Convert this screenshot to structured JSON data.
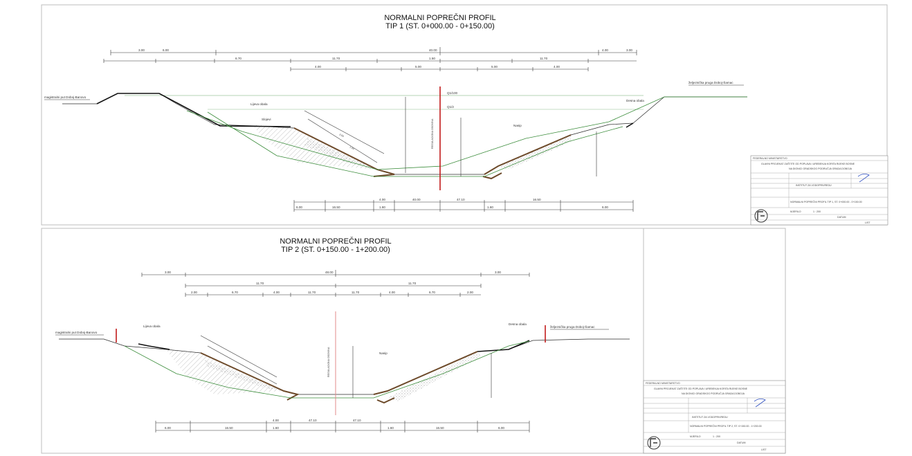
{
  "sheet1": {
    "title_line1": "NORMALNI POPREČNI PROFIL",
    "title_line2": "TIP 1 (ST. 0+000.00 - 0+150.00)",
    "left_label": "magistralni put Doboj-Banovo",
    "right_label": "željeznička pruga Doboj-Šamac",
    "left_bank": "Lijeva obala",
    "right_bank": "Desna obala",
    "axis_label": "REGULACIONA OSOVINA",
    "embankment_label": "Nasip",
    "layers_label": "Slojevi",
    "water_level_high": "Q1/100",
    "water_level_low": "Q1/2",
    "dims_top": [
      "3.00",
      "6.00",
      "40.00",
      "4.00",
      "3.00"
    ],
    "dims_mid": [
      "2.00",
      "4.00",
      "1.50",
      "6.70",
      "3.00",
      "11.70",
      "4.00",
      "5.00",
      "1.50"
    ],
    "dims_bottom": [
      "6.00",
      "16.50",
      "4.00",
      "1.60",
      "40.00",
      "47.10",
      "1.60",
      "4.00",
      "16.50",
      "6.00"
    ]
  },
  "sheet2": {
    "title_line1": "NORMALNI POPREČNI PROFIL",
    "title_line2": "TIP 2 (ST. 0+150.00 - 1+200.00)",
    "left_label": "magistralni put Doboj-Banovo",
    "right_label": "željeznička pruga Doboj-Šamac",
    "left_bank": "Lijeva obala",
    "right_bank": "Desna obala",
    "axis_label": "REGULACIONA OSOVINA",
    "embankment_label": "Nasip",
    "dims_top": [
      "3.00",
      "48.00",
      "3.00"
    ],
    "dims_mid": [
      "2.00",
      "6.70",
      "4.00",
      "11.70",
      "11.70",
      "4.00",
      "6.70",
      "2.00"
    ],
    "dims_bottom": [
      "6.00",
      "16.50",
      "4.00",
      "1.60",
      "47.10",
      "47.10",
      "1.60",
      "4.00",
      "16.50",
      "6.00"
    ]
  },
  "stamp1": {
    "investor": "FEDERALNO MINISTARSTVO",
    "project": "GLAVNI PROJEKAT ZAŠTITE OD POPLAVA I UREĐENJA KORITA RIJEKE BOSNE",
    "subtitle": "NA DIONICI GRADSKOG PODRUČJA GRADA DOBOJA",
    "company": "INSTITUT ZA VODOPRIVREDU",
    "drawing": "NORMALNI POPREČNI PROFIL TIP 1, ST. 0+000.00 - 0+150.00",
    "scale_label": "MJERILO",
    "scale_value": "1 : 200",
    "date_label": "DATUM",
    "sheet_label": "LIST"
  },
  "stamp2": {
    "investor": "FEDERALNO MINISTARSTVO",
    "project": "GLAVNI PROJEKAT ZAŠTITE OD POPLAVA I UREĐENJA KORITA RIJEKE BOSNE",
    "subtitle": "NA DIONICI GRADSKOG PODRUČJA GRADA DOBOJA",
    "company": "INSTITUT ZA VODOPRIVREDU",
    "drawing": "NORMALNI POPREČNI PROFIL TIP 2, ST. 0+150.00 - 1+200.00",
    "scale_label": "MJERILO",
    "scale_value": "1 : 200",
    "date_label": "DATUM",
    "sheet_label": "LIST"
  },
  "colors": {
    "axis": "#c21b1b",
    "ground": "#3a8c3a",
    "channel": "#6d4a2a",
    "paper": "#ffffff"
  }
}
